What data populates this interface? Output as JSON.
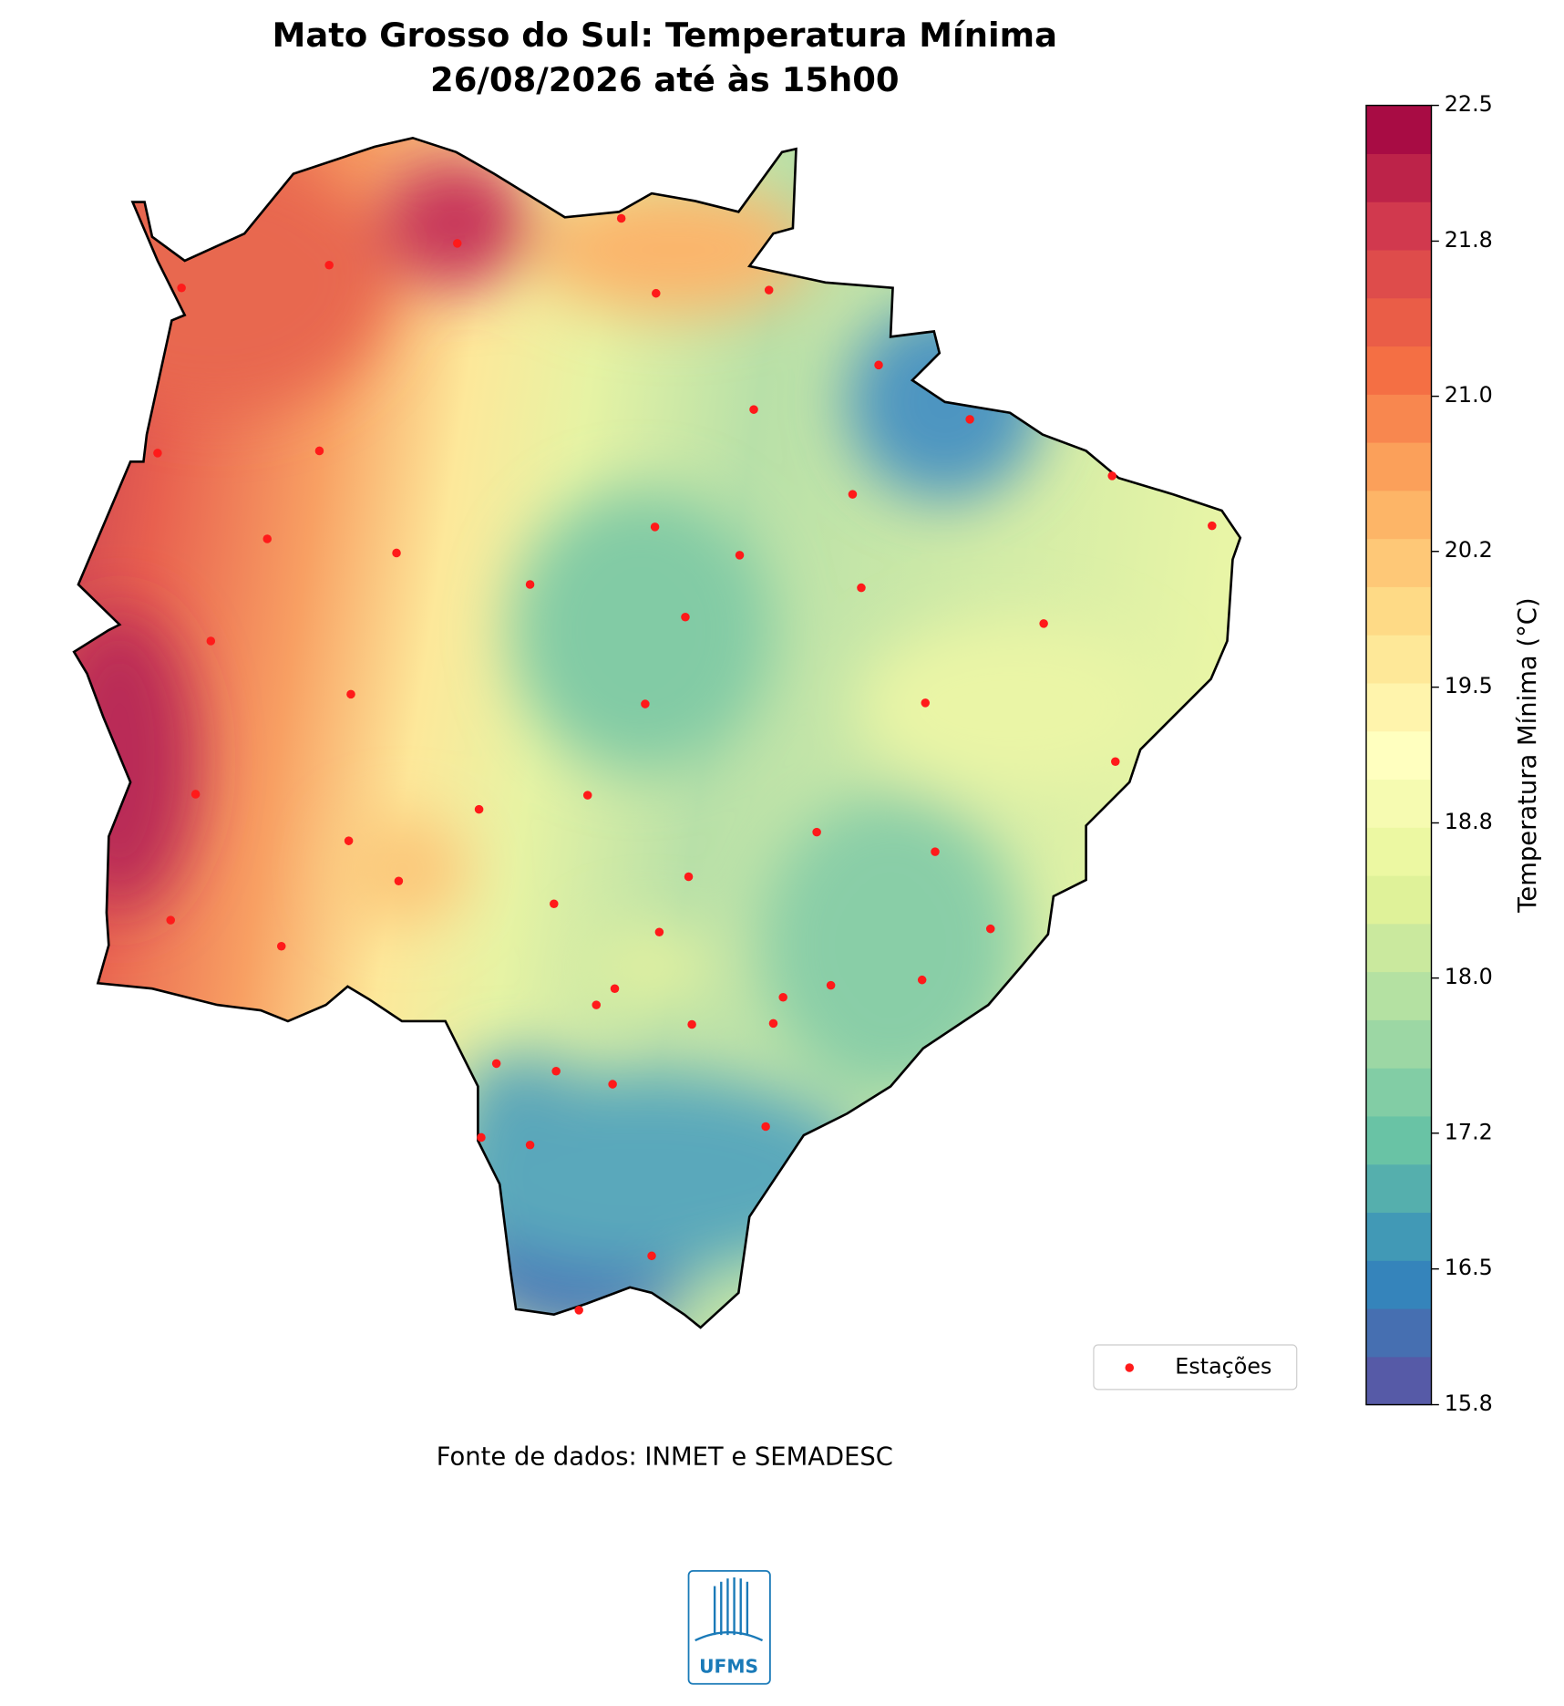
{
  "title": "Mato Grosso do Sul: Temperatura Mínima",
  "subtitle": "26/08/2026 até às 15h00",
  "colorbar": {
    "label": "Temperatura Mínima (°C)",
    "lim": [
      15.8,
      22.5
    ],
    "ticks": [
      15.8,
      16.5,
      17.2,
      {
        "value": 18.0,
        "label": "18.0"
      },
      18.8,
      19.5,
      20.2,
      {
        "value": 21.0,
        "label": "21.0"
      },
      21.8,
      22.5
    ],
    "colormap": [
      "#5e4fa2",
      "#3288bd",
      "#66c2a5",
      "#abdda4",
      "#e6f598",
      "#ffffbf",
      "#fee08b",
      "#fdae61",
      "#f46d43",
      "#d53e4f",
      "#9e0142"
    ]
  },
  "legend": {
    "label": "Estações",
    "color": "#ff1a1a"
  },
  "source": "Fonte de dados: INMET e SEMADESC",
  "logo": "UFMS"
}
